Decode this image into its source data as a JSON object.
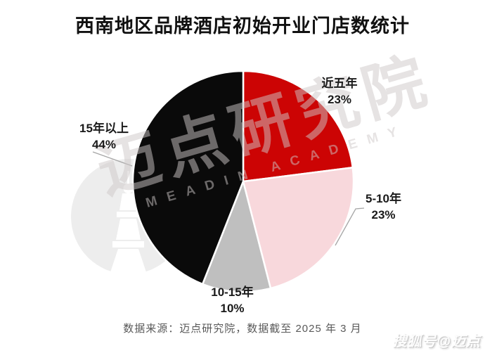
{
  "title": "西南地区品牌酒店初始开业门店数统计",
  "chart_data": {
    "type": "pie",
    "title": "西南地区品牌酒店初始开业门店数统计",
    "unit": "percent",
    "direction": "clockwise",
    "start_angle_deg": 0,
    "legend_position": "none",
    "labels_outside": true,
    "slices": [
      {
        "label": "近五年",
        "value": 23,
        "pct_label": "23%",
        "color": "#CC0404"
      },
      {
        "label": "5-10年",
        "value": 23,
        "pct_label": "23%",
        "color": "#F8D8DC"
      },
      {
        "label": "10-15年",
        "value": 10,
        "pct_label": "10%",
        "color": "#BFBFBF"
      },
      {
        "label": "15年以上",
        "value": 44,
        "pct_label": "44%",
        "color": "#0A0A0A"
      }
    ]
  },
  "source_note": "数据来源：迈点研究院，数据截至 2025 年 3 月",
  "watermarks": {
    "diagonal_text": "迈点研究院",
    "diagonal_subtext": "MEADIN ACADEMY",
    "corner_logo": "搜狐号@迈点",
    "circle_logo_icon": "meadin-tower-icon"
  }
}
